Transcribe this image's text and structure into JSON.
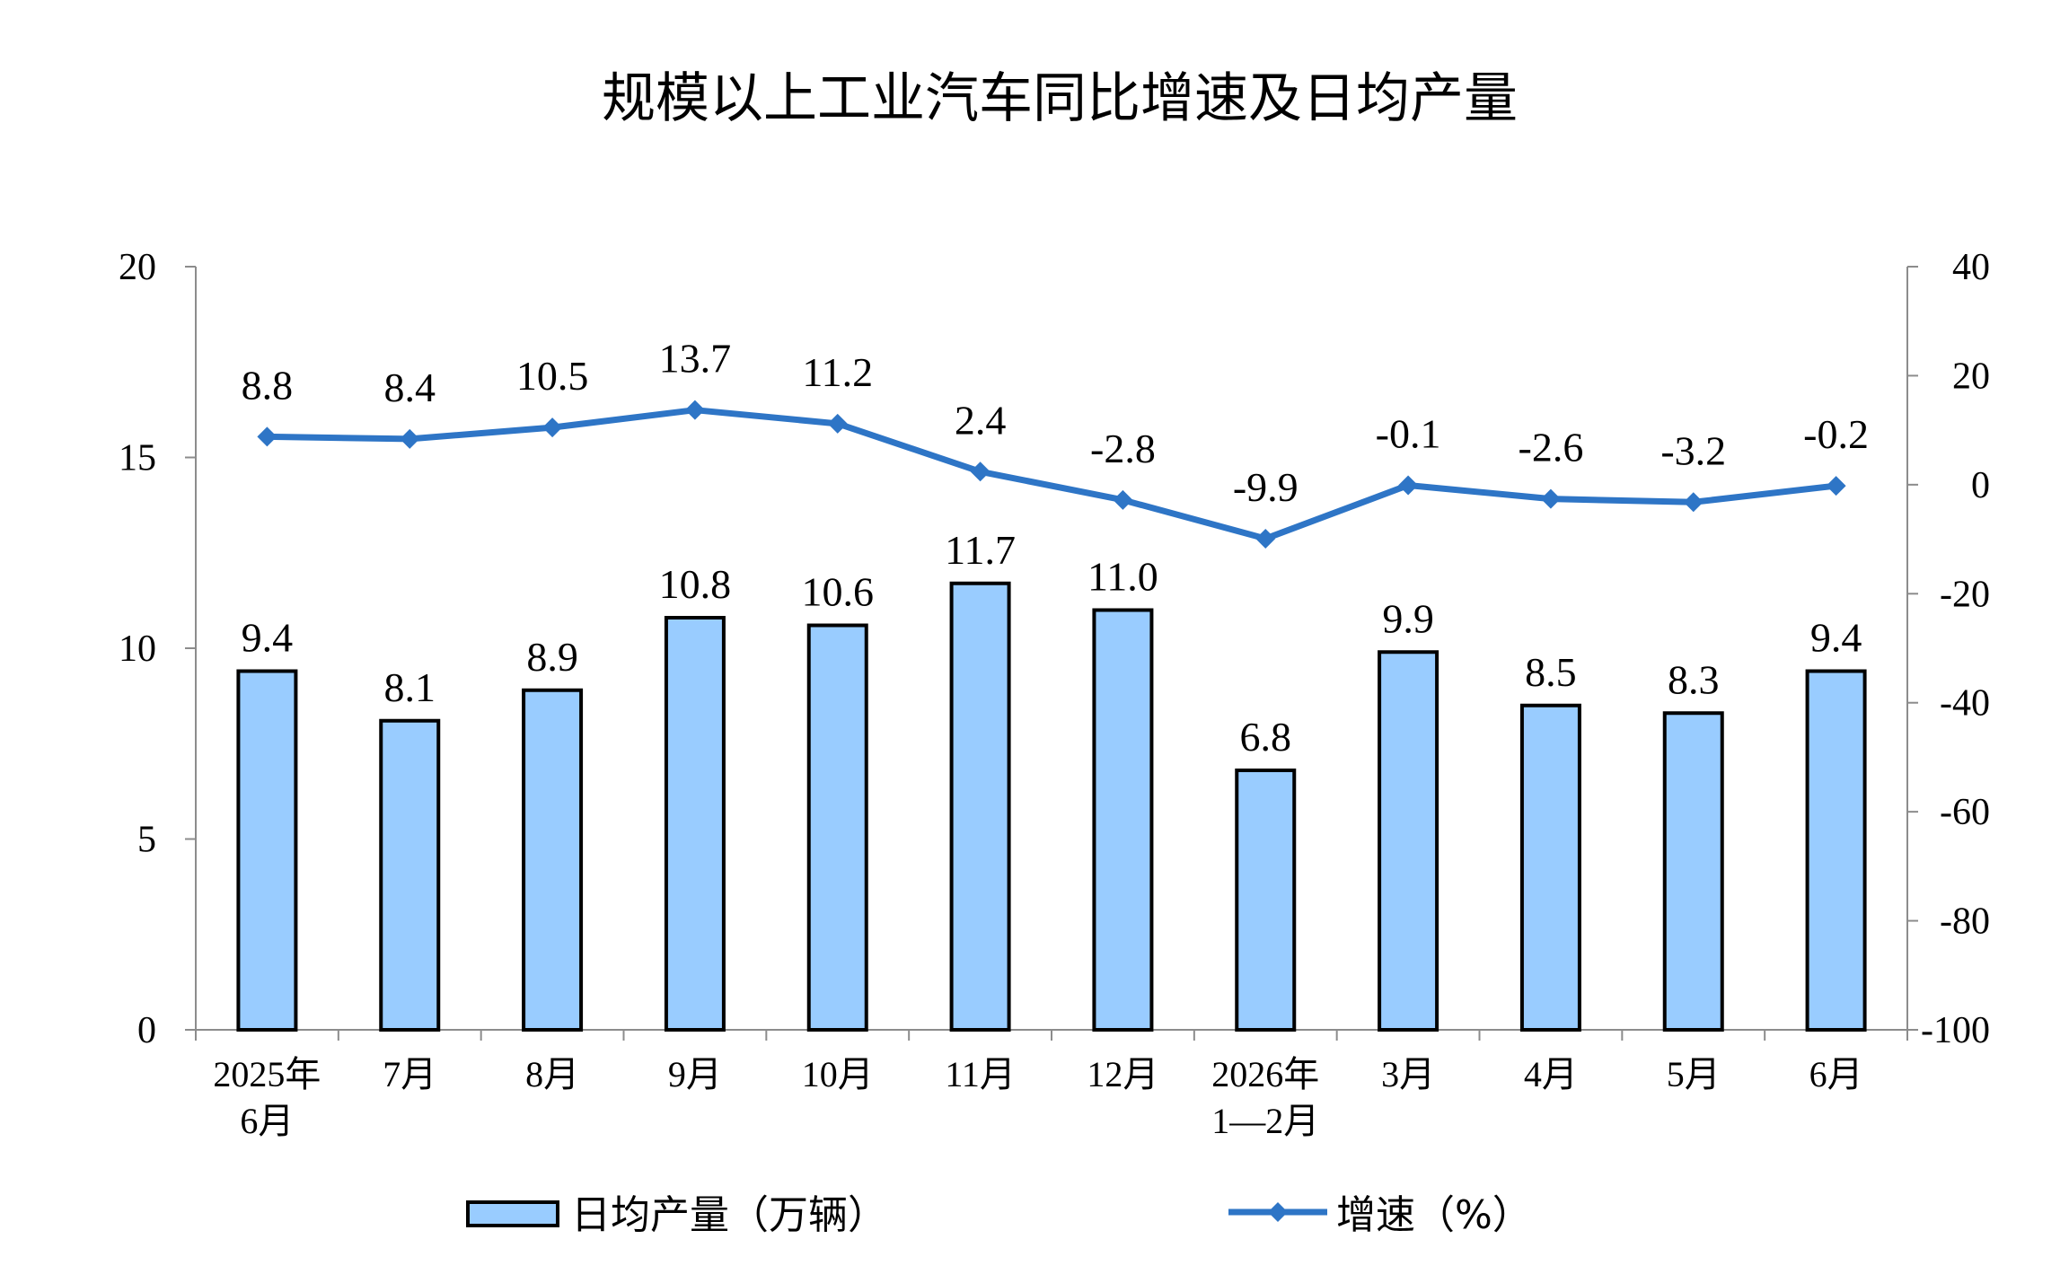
{
  "chart_data": {
    "type": "bar",
    "title": "规模以上工业汽车同比增速及日均产量",
    "categories": [
      [
        "2025年",
        "6月"
      ],
      [
        "7月"
      ],
      [
        "8月"
      ],
      [
        "9月"
      ],
      [
        "10月"
      ],
      [
        "11月"
      ],
      [
        "12月"
      ],
      [
        "2026年",
        "1—2月"
      ],
      [
        "3月"
      ],
      [
        "4月"
      ],
      [
        "5月"
      ],
      [
        "6月"
      ]
    ],
    "series": [
      {
        "name": "日均产量（万辆）",
        "type": "bar",
        "axis": "left",
        "values": [
          9.4,
          8.1,
          8.9,
          10.8,
          10.6,
          11.7,
          11.0,
          6.8,
          9.9,
          8.5,
          8.3,
          9.4
        ],
        "labels": [
          "9.4",
          "8.1",
          "8.9",
          "10.8",
          "10.6",
          "11.7",
          "11.0",
          "6.8",
          "9.9",
          "8.5",
          "8.3",
          "9.4"
        ],
        "color": "#99CCFF"
      },
      {
        "name": "增速（%）",
        "type": "line",
        "axis": "right",
        "values": [
          8.8,
          8.4,
          10.5,
          13.7,
          11.2,
          2.4,
          -2.8,
          -9.9,
          -0.1,
          -2.6,
          -3.2,
          -0.2
        ],
        "labels": [
          "8.8",
          "8.4",
          "10.5",
          "13.7",
          "11.2",
          "2.4",
          "-2.8",
          "-9.9",
          "-0.1",
          "-2.6",
          "-3.2",
          "-0.2"
        ],
        "color": "#2E75C6"
      }
    ],
    "y_left": {
      "min": 0,
      "max": 20,
      "ticks": [
        "0",
        "5",
        "10",
        "15",
        "20"
      ]
    },
    "y_right": {
      "min": -100,
      "max": 40,
      "ticks": [
        "-100",
        "-80",
        "-60",
        "-40",
        "-20",
        "0",
        "20",
        "40"
      ]
    },
    "grid": false,
    "legend": "bottom"
  }
}
